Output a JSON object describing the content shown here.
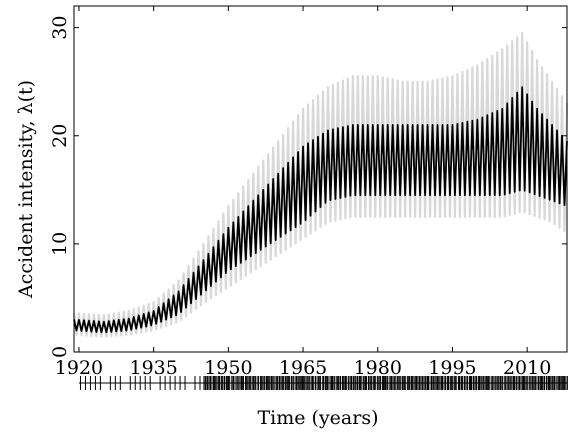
{
  "chart_data": {
    "type": "line",
    "xlabel": "Time (years)",
    "ylabel": "Accident intensity, λ(t)",
    "xlim": [
      1919,
      2018
    ],
    "ylim": [
      0,
      32
    ],
    "x_ticks": [
      1920,
      1935,
      1950,
      1965,
      1980,
      1995,
      2010
    ],
    "y_ticks": [
      0,
      10,
      20,
      30
    ],
    "grid": false,
    "legend": "none",
    "seasonal_period_years": 1,
    "series": [
      {
        "role": "posterior median / mean band (dark)",
        "color": "#000000",
        "x": [
          1919,
          1925,
          1930,
          1935,
          1940,
          1945,
          1950,
          1955,
          1960,
          1965,
          1970,
          1975,
          1980,
          1985,
          1990,
          1995,
          2000,
          2005,
          2009,
          2012,
          2015,
          2018
        ],
        "center": [
          2.5,
          2.3,
          2.6,
          3.2,
          4.6,
          7.0,
          9.5,
          11.5,
          13.5,
          15.5,
          17.0,
          17.5,
          17.5,
          17.5,
          17.5,
          17.8,
          18.0,
          18.2,
          18.5,
          17.8,
          17.0,
          15.5
        ],
        "lower": [
          2.0,
          1.8,
          2.0,
          2.5,
          3.5,
          5.5,
          7.5,
          9.0,
          10.5,
          12.0,
          14.0,
          14.5,
          14.5,
          14.5,
          14.5,
          14.5,
          14.5,
          14.5,
          15.0,
          14.5,
          14.0,
          13.5
        ],
        "upper": [
          3.0,
          2.8,
          3.1,
          3.8,
          5.6,
          8.5,
          11.5,
          14.0,
          16.5,
          19.0,
          20.5,
          21.0,
          21.0,
          21.0,
          21.0,
          21.0,
          21.5,
          22.5,
          24.5,
          22.5,
          21.0,
          19.5
        ]
      },
      {
        "role": "credible interval band (light gray)",
        "color": "#d8d8d8",
        "x": [
          1919,
          1925,
          1930,
          1935,
          1940,
          1945,
          1950,
          1955,
          1960,
          1965,
          1970,
          1975,
          1980,
          1985,
          1990,
          1995,
          2000,
          2005,
          2009,
          2012,
          2015,
          2018
        ],
        "lower": [
          1.6,
          1.4,
          1.6,
          2.0,
          2.8,
          4.5,
          6.0,
          7.5,
          9.0,
          10.5,
          12.0,
          12.5,
          12.5,
          12.5,
          12.5,
          12.5,
          12.5,
          12.5,
          13.0,
          12.5,
          12.0,
          11.0
        ],
        "upper": [
          3.6,
          3.4,
          3.8,
          4.6,
          6.6,
          10.0,
          13.5,
          16.5,
          19.5,
          22.5,
          24.5,
          25.5,
          25.5,
          25.0,
          25.0,
          25.5,
          26.5,
          28.0,
          29.5,
          27.0,
          25.0,
          23.0
        ]
      }
    ],
    "rug": {
      "description": "event times (accident occurrences) shown as rug ticks below the x-axis",
      "color": "#000000",
      "sparse_years": [
        1920,
        1921,
        1922,
        1923,
        1924,
        1926,
        1927,
        1928,
        1930,
        1931,
        1932,
        1933,
        1934,
        1936,
        1937,
        1938,
        1939,
        1940,
        1941,
        1943,
        1944
      ],
      "dense_from": 1945,
      "dense_to": 2018
    }
  }
}
